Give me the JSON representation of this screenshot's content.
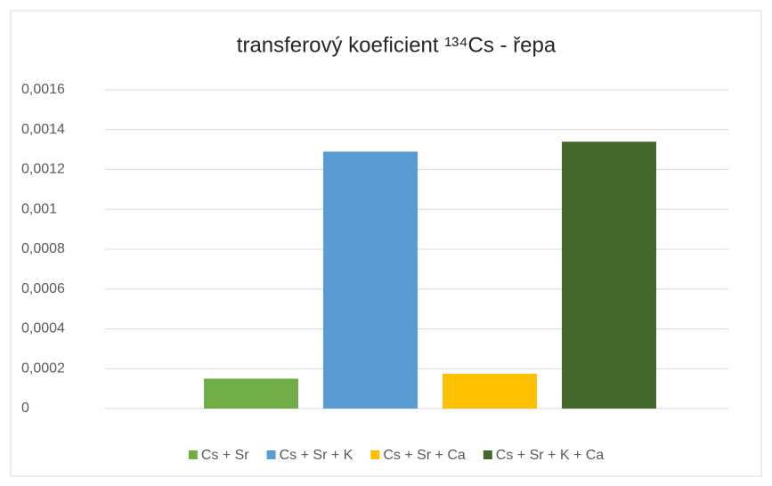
{
  "chart_data": {
    "type": "bar",
    "title": "transferový koeficient ¹³⁴Cs - řepa",
    "categories": [
      null
    ],
    "series": [
      {
        "name": "Cs + Sr",
        "color": "#70ad47",
        "values": [
          0.00015
        ]
      },
      {
        "name": "Cs + Sr + K",
        "color": "#5b9bd5",
        "values": [
          0.00129
        ]
      },
      {
        "name": "Cs + Sr + Ca",
        "color": "#ffc000",
        "values": [
          0.000175
        ]
      },
      {
        "name": "Cs + Sr + K + Ca",
        "color": "#43682b",
        "values": [
          0.00134
        ]
      }
    ],
    "ylim": [
      0,
      0.0016
    ],
    "yticks": [
      0,
      {
        "value": 0.0002,
        "label": "0,0002"
      },
      {
        "value": 0.0004,
        "label": "0,0004"
      },
      {
        "value": 0.0006,
        "label": "0,0006"
      },
      {
        "value": 0.0008,
        "label": "0,0008"
      },
      {
        "value": 0.001,
        "label": "0,001"
      },
      {
        "value": 0.0012,
        "label": "0,0012"
      },
      {
        "value": 0.0014,
        "label": "0,0014"
      },
      {
        "value": 0.0016,
        "label": "0,0016"
      }
    ],
    "grid": true,
    "legend": "bottom"
  }
}
